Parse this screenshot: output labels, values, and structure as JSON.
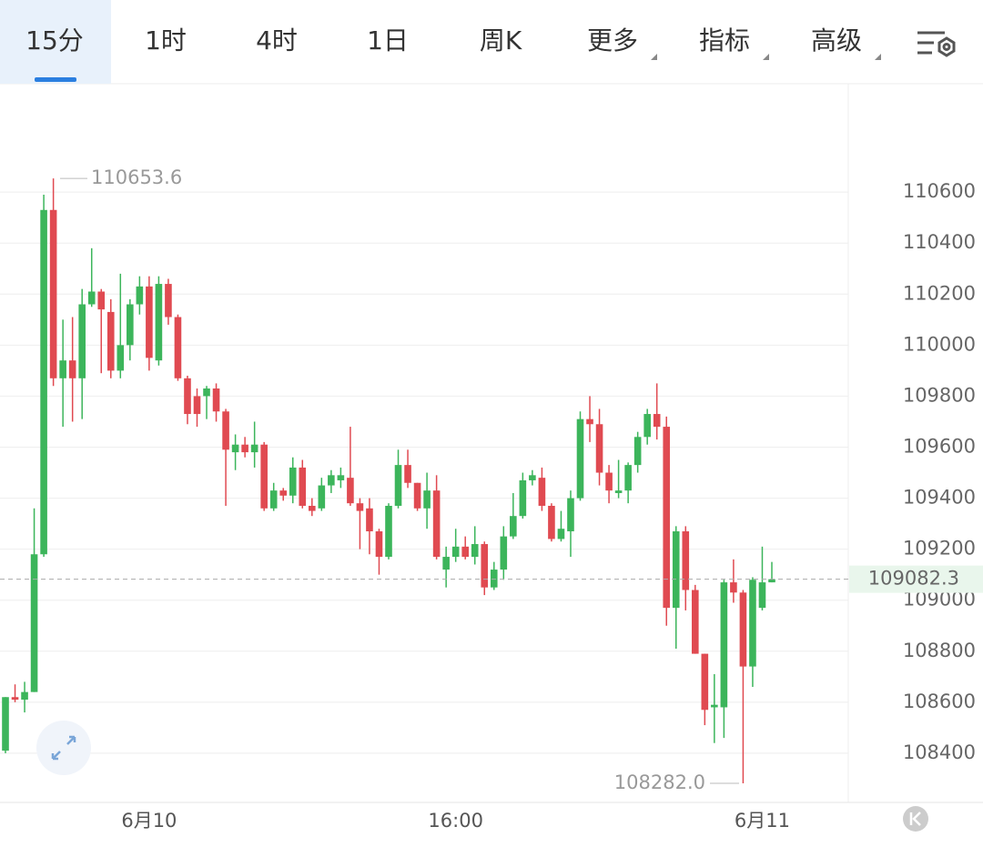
{
  "toolbar": {
    "tabs": [
      "15分",
      "1时",
      "4时",
      "1日",
      "周K",
      "更多",
      "指标",
      "高级"
    ],
    "active": 0
  },
  "chart_data": {
    "type": "candlestick",
    "categories": [
      null,
      null,
      null,
      null,
      null,
      null,
      null,
      null,
      null,
      null,
      null,
      null,
      null,
      null,
      null,
      "6月10",
      null,
      null,
      null,
      null,
      null,
      null,
      null,
      null,
      null,
      null,
      null,
      null,
      null,
      null,
      null,
      null,
      null,
      null,
      null,
      null,
      null,
      null,
      null,
      null,
      null,
      null,
      null,
      null,
      null,
      null,
      null,
      "16:00",
      null,
      null,
      null,
      null,
      null,
      null,
      null,
      null,
      null,
      null,
      null,
      null,
      null,
      null,
      null,
      null,
      null,
      null,
      null,
      null,
      null,
      null,
      null,
      null,
      null,
      null,
      null,
      null,
      null,
      null,
      null,
      "6月11",
      null
    ],
    "open": [
      108410,
      108620,
      108610,
      108640,
      109180,
      110530,
      109870,
      109940,
      109870,
      110160,
      110210,
      110130,
      109900,
      110000,
      110160,
      110230,
      109940,
      110240,
      110110,
      109870,
      109800,
      109800,
      109830,
      109740,
      109580,
      109610,
      109580,
      109610,
      109360,
      109430,
      109410,
      109520,
      109370,
      109360,
      109450,
      109470,
      109480,
      109380,
      109360,
      109270,
      109170,
      109370,
      109530,
      109460,
      109360,
      109430,
      109120,
      109170,
      109210,
      109170,
      109220,
      109050,
      109120,
      109250,
      109330,
      109470,
      109480,
      109370,
      109240,
      109270,
      109400,
      109710,
      109690,
      109500,
      109420,
      109430,
      109530,
      109640,
      109730,
      109680,
      108970,
      109270,
      109040,
      108790,
      108580,
      108580,
      109070,
      109030,
      108740,
      108970,
      109070
    ],
    "high": [
      108620,
      108670,
      108680,
      109360,
      110590,
      110653.6,
      110100,
      110110,
      110220,
      110380,
      110220,
      110180,
      110280,
      110180,
      110270,
      110270,
      110270,
      110260,
      110120,
      109880,
      109830,
      109840,
      109850,
      109750,
      109650,
      109640,
      109700,
      109620,
      109460,
      109440,
      109560,
      109550,
      109400,
      109480,
      109510,
      109520,
      109680,
      109400,
      109400,
      109280,
      109380,
      109590,
      109590,
      109460,
      109500,
      109490,
      109210,
      109280,
      109250,
      109290,
      109230,
      109150,
      109290,
      109420,
      109500,
      109510,
      109520,
      109380,
      109350,
      109430,
      109740,
      109800,
      109750,
      109530,
      109550,
      109540,
      109660,
      109750,
      109850,
      109720,
      109290,
      109290,
      109060,
      108790,
      108710,
      109080,
      109160,
      109040,
      109090,
      109210,
      109150
    ],
    "low": [
      108400,
      108600,
      108560,
      108640,
      109170,
      109840,
      109680,
      109700,
      109710,
      110150,
      109890,
      109870,
      109870,
      109940,
      110120,
      109900,
      109920,
      110080,
      109860,
      109690,
      109680,
      109710,
      109700,
      109370,
      109510,
      109560,
      109520,
      109350,
      109350,
      109390,
      109380,
      109360,
      109330,
      109350,
      109420,
      109440,
      109370,
      109200,
      109180,
      109100,
      109160,
      109360,
      109440,
      109350,
      109280,
      109160,
      109050,
      109150,
      109160,
      109140,
      109020,
      109040,
      109080,
      109240,
      109320,
      109450,
      109350,
      109230,
      109230,
      109170,
      109390,
      109620,
      109450,
      109380,
      109400,
      109380,
      109500,
      109610,
      109630,
      108900,
      108810,
      108960,
      108790,
      108510,
      108440,
      108460,
      108990,
      108282.0,
      108660,
      108960,
      109070
    ],
    "close": [
      108620,
      108610,
      108640,
      109180,
      110530,
      109870,
      109940,
      109870,
      110160,
      110210,
      110140,
      109900,
      110000,
      110160,
      110230,
      109950,
      110240,
      110110,
      109870,
      109730,
      109730,
      109830,
      109740,
      109590,
      109610,
      109580,
      109610,
      109360,
      109430,
      109410,
      109520,
      109370,
      109350,
      109450,
      109490,
      109490,
      109380,
      109350,
      109270,
      109170,
      109370,
      109530,
      109460,
      109360,
      109430,
      109170,
      109170,
      109210,
      109170,
      109220,
      109050,
      109120,
      109250,
      109330,
      109470,
      109490,
      109370,
      109240,
      109280,
      109400,
      109710,
      109690,
      109500,
      109430,
      109430,
      109530,
      109640,
      109730,
      109680,
      108970,
      109270,
      109040,
      108790,
      108570,
      108590,
      109070,
      109030,
      108740,
      109080,
      109070,
      109082.3
    ],
    "up_color": "#3cb55b",
    "down_color": "#e04a51",
    "ylim": [
      108200,
      111000
    ],
    "yticks": [
      108400,
      108600,
      108800,
      109000,
      109200,
      109400,
      109600,
      109800,
      110000,
      110200,
      110400,
      110600
    ],
    "grid": true,
    "max_marker": 110653.6,
    "min_marker": {
      "value": 108282.0,
      "label": "108282.0"
    },
    "last_price": 109082.3
  }
}
